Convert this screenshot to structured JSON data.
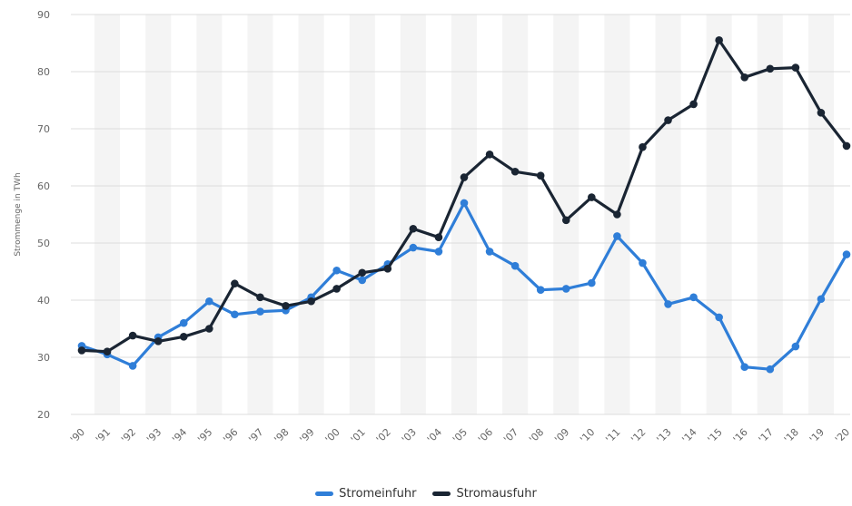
{
  "chart_data": {
    "type": "line",
    "ylabel": "Strommenge in TWh",
    "ylim": [
      20,
      90
    ],
    "yticks": [
      "20",
      "30",
      "40",
      "50",
      "60",
      "70",
      "80",
      "90"
    ],
    "categories": [
      "'90",
      "'91",
      "'92",
      "'93",
      "'94",
      "'95",
      "'96",
      "'97",
      "'98",
      "'99",
      "'00",
      "'01",
      "'02",
      "'03",
      "'04",
      "'05",
      "'06",
      "'07",
      "'08",
      "'09",
      "'10",
      "'11",
      "'12",
      "'13",
      "'14",
      "'15",
      "'16",
      "'17",
      "'18",
      "'19",
      "'20"
    ],
    "series": [
      {
        "name": "Stromeinfuhr",
        "color": "#2f7ed8",
        "values": [
          32.0,
          30.5,
          28.5,
          33.5,
          36.0,
          39.8,
          37.5,
          38.0,
          38.2,
          40.5,
          45.2,
          43.5,
          46.3,
          49.2,
          48.5,
          57.0,
          48.5,
          46.0,
          41.8,
          42.0,
          43.0,
          51.2,
          46.5,
          39.3,
          40.5,
          37.0,
          28.3,
          27.9,
          31.9,
          40.2,
          48.0
        ]
      },
      {
        "name": "Stromausfuhr",
        "color": "#1a2533",
        "values": [
          31.2,
          31.0,
          33.8,
          32.8,
          33.6,
          35.0,
          42.9,
          40.5,
          39.0,
          39.8,
          42.0,
          44.8,
          45.5,
          52.5,
          51.0,
          61.5,
          65.5,
          62.5,
          61.8,
          54.0,
          58.0,
          55.0,
          66.8,
          71.5,
          74.3,
          85.5,
          79.0,
          80.5,
          80.7,
          72.8,
          67.0
        ]
      }
    ],
    "grid": true,
    "legend_position": "bottom-center"
  }
}
